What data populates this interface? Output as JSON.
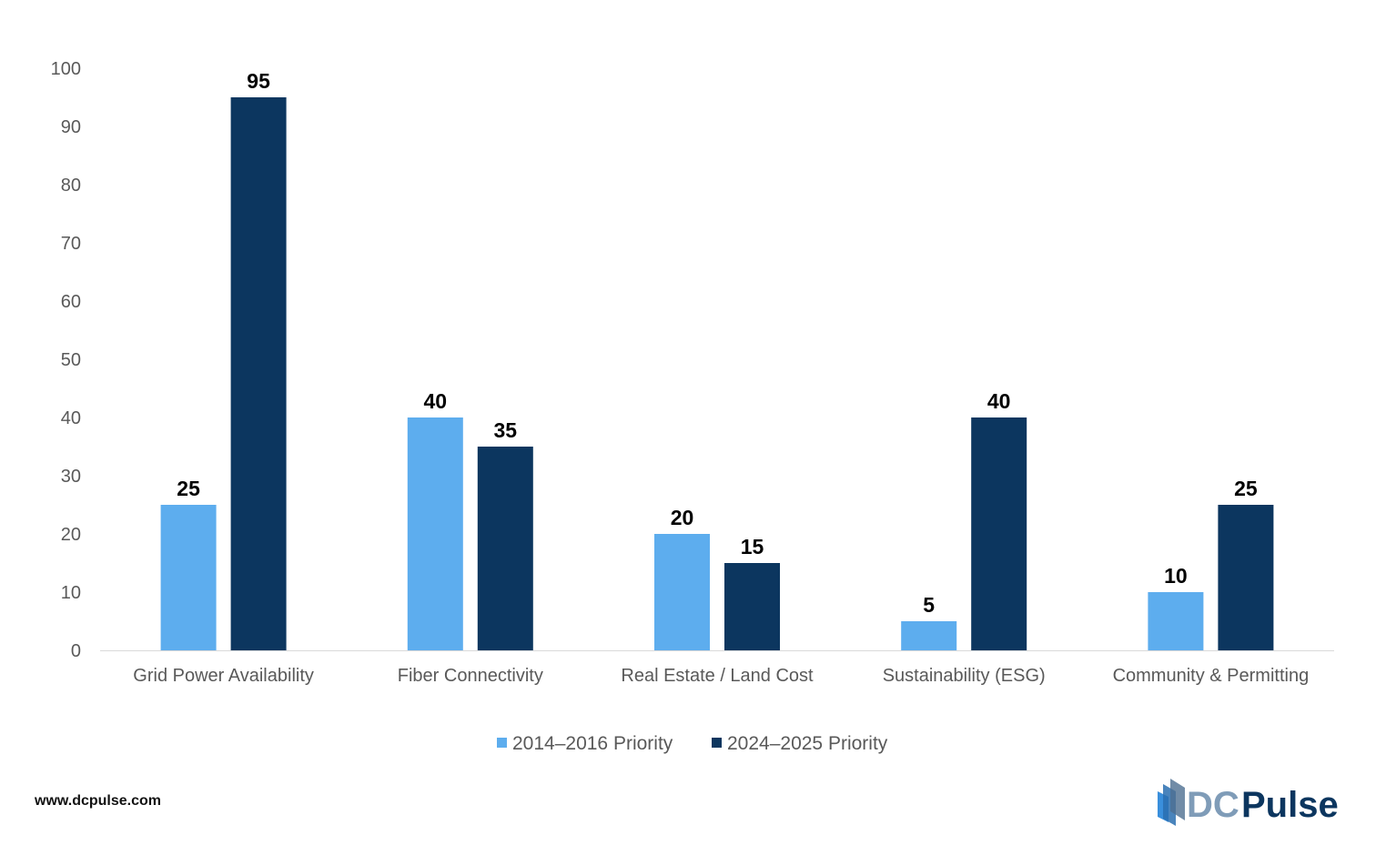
{
  "chart_data": {
    "type": "bar",
    "title": "",
    "xlabel": "",
    "ylabel": "",
    "ylim": [
      0,
      100
    ],
    "yticks": [
      0,
      10,
      20,
      30,
      40,
      50,
      60,
      70,
      80,
      90,
      100
    ],
    "grid": false,
    "legend_placement": "bottom",
    "categories": [
      "Grid Power Availability",
      "Fiber Connectivity",
      "Real Estate / Land Cost",
      "Sustainability (ESG)",
      "Community & Permitting"
    ],
    "series": [
      {
        "name": "2014–2016 Priority",
        "color": "#5DADEE",
        "values": [
          25,
          40,
          20,
          5,
          10
        ]
      },
      {
        "name": "2024–2025 Priority",
        "color": "#0C365F",
        "values": [
          95,
          35,
          15,
          40,
          25
        ]
      }
    ],
    "data_labels": true
  },
  "footer": {
    "website": "www.dcpulse.com",
    "logo_text": "DCPulse"
  }
}
